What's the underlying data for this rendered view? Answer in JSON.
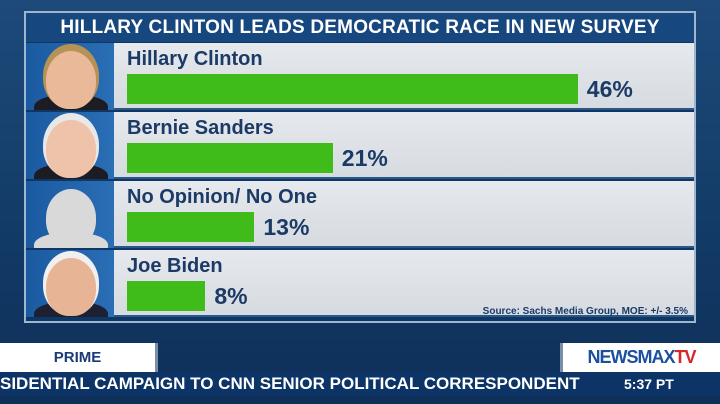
{
  "chart_data": {
    "type": "bar",
    "orientation": "horizontal",
    "title": "HILLARY CLINTON LEADS DEMOCRATIC RACE IN NEW SURVEY",
    "categories": [
      "Hillary Clinton",
      "Bernie Sanders",
      "No Opinion/ No One",
      "Joe Biden"
    ],
    "values": [
      46,
      21,
      13,
      8
    ],
    "labels": [
      "46%",
      "21%",
      "13%",
      "8%"
    ],
    "source": "Source: Sachs Media Group, MOE: +/- 3.5%",
    "bar_color": "#3fbb1a",
    "xlim": [
      0,
      50
    ]
  },
  "lower_third": {
    "show": "PRIME",
    "logo_main": "NEWSMAX",
    "logo_tv": "TV"
  },
  "ticker": {
    "text": "SIDENTIAL CAMPAIGN TO CNN SENIOR POLITICAL CORRESPONDENT",
    "time": "5:37 PT"
  }
}
